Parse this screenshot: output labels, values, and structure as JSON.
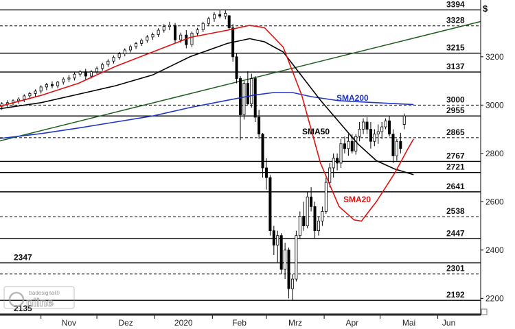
{
  "chart_data": {
    "type": "candlestick",
    "currency_unit": "$",
    "y_ticks": [
      2200,
      2400,
      2600,
      2800,
      3000,
      3200
    ],
    "y_range": [
      2130,
      3435
    ],
    "x_labels": [
      {
        "label": "Nov",
        "day": 0
      },
      {
        "label": "Dez",
        "day": 30
      },
      {
        "label": "2020",
        "day": 61
      },
      {
        "label": "Feb",
        "day": 92
      },
      {
        "label": "Mrz",
        "day": 121
      },
      {
        "label": "Apr",
        "day": 152
      },
      {
        "label": "Mai",
        "day": 182
      },
      {
        "label": "Jun",
        "day": 213
      }
    ],
    "x_range_days": [
      -22,
      236
    ],
    "levels": [
      {
        "value": 3394,
        "label": "3394",
        "style": "solid",
        "side": "right"
      },
      {
        "value": 3328,
        "label": "3328",
        "style": "dashed",
        "side": "right"
      },
      {
        "value": 3215,
        "label": "3215",
        "style": "solid",
        "side": "right"
      },
      {
        "value": 3137,
        "label": "3137",
        "style": "solid",
        "side": "right"
      },
      {
        "value": 3000,
        "label": "3000",
        "style": "dashed",
        "side": "right"
      },
      {
        "value": 2955,
        "label": "2955",
        "style": "solid",
        "side": "right"
      },
      {
        "value": 2865,
        "label": "2865",
        "style": "dashed",
        "side": "right"
      },
      {
        "value": 2767,
        "label": "2767",
        "style": "solid",
        "side": "right"
      },
      {
        "value": 2721,
        "label": "2721",
        "style": "solid",
        "side": "right"
      },
      {
        "value": 2641,
        "label": "2641",
        "style": "solid",
        "side": "right"
      },
      {
        "value": 2538,
        "label": "2538",
        "style": "dashed",
        "side": "right"
      },
      {
        "value": 2447,
        "label": "2447",
        "style": "solid",
        "side": "right"
      },
      {
        "value": 2347,
        "label": "2347",
        "style": "solid",
        "side": "left"
      },
      {
        "value": 2301,
        "label": "2301",
        "style": "dashed",
        "side": "right"
      },
      {
        "value": 2192,
        "label": "2192",
        "style": "solid",
        "side": "right"
      },
      {
        "value": 2135,
        "label": "2135",
        "style": "solid",
        "side": "left"
      }
    ],
    "trendline": {
      "from": {
        "day": -22,
        "value": 2852
      },
      "to": {
        "day": 236,
        "value": 3346
      },
      "color": "#1e5e1e"
    },
    "sma200": {
      "name": "SMA200",
      "color": "#1f35c8",
      "points": [
        [
          -22,
          2862
        ],
        [
          0,
          2882
        ],
        [
          20,
          2905
        ],
        [
          40,
          2930
        ],
        [
          60,
          2955
        ],
        [
          80,
          2990
        ],
        [
          100,
          3020
        ],
        [
          115,
          3042
        ],
        [
          125,
          3052
        ],
        [
          135,
          3052
        ],
        [
          145,
          3035
        ],
        [
          160,
          3018
        ],
        [
          180,
          3010
        ],
        [
          200,
          3002
        ]
      ]
    },
    "sma50": {
      "name": "SMA50",
      "color": "#000000",
      "points": [
        [
          -22,
          2985
        ],
        [
          0,
          3010
        ],
        [
          20,
          3045
        ],
        [
          40,
          3080
        ],
        [
          60,
          3125
        ],
        [
          80,
          3200
        ],
        [
          100,
          3255
        ],
        [
          112,
          3275
        ],
        [
          120,
          3262
        ],
        [
          130,
          3220
        ],
        [
          140,
          3120
        ],
        [
          150,
          3020
        ],
        [
          160,
          2930
        ],
        [
          170,
          2840
        ],
        [
          180,
          2770
        ],
        [
          190,
          2735
        ],
        [
          200,
          2712
        ]
      ]
    },
    "sma20": {
      "name": "SMA20",
      "color": "#e01010",
      "points": [
        [
          -22,
          2995
        ],
        [
          0,
          3040
        ],
        [
          20,
          3090
        ],
        [
          40,
          3160
        ],
        [
          60,
          3220
        ],
        [
          80,
          3280
        ],
        [
          100,
          3310
        ],
        [
          112,
          3330
        ],
        [
          120,
          3320
        ],
        [
          130,
          3240
        ],
        [
          140,
          3040
        ],
        [
          150,
          2760
        ],
        [
          160,
          2580
        ],
        [
          168,
          2525
        ],
        [
          172,
          2520
        ],
        [
          180,
          2600
        ],
        [
          190,
          2720
        ],
        [
          197,
          2820
        ],
        [
          200,
          2860
        ]
      ]
    },
    "candles": [
      [
        -21,
        2995,
        3012,
        2980,
        3005
      ],
      [
        -18,
        3005,
        3020,
        2992,
        3010
      ],
      [
        -15,
        3010,
        3024,
        2998,
        3018
      ],
      [
        -12,
        3018,
        3032,
        3005,
        3025
      ],
      [
        -9,
        3025,
        3045,
        3012,
        3038
      ],
      [
        -6,
        3038,
        3055,
        3025,
        3048
      ],
      [
        -3,
        3048,
        3065,
        3035,
        3058
      ],
      [
        0,
        3058,
        3082,
        3048,
        3075
      ],
      [
        3,
        3075,
        3092,
        3062,
        3085
      ],
      [
        6,
        3085,
        3098,
        3070,
        3080
      ],
      [
        9,
        3080,
        3100,
        3070,
        3095
      ],
      [
        12,
        3095,
        3115,
        3085,
        3108
      ],
      [
        15,
        3108,
        3125,
        3095,
        3112
      ],
      [
        18,
        3112,
        3135,
        3102,
        3128
      ],
      [
        21,
        3128,
        3145,
        3118,
        3138
      ],
      [
        24,
        3138,
        3150,
        3105,
        3120
      ],
      [
        27,
        3120,
        3145,
        3110,
        3138
      ],
      [
        30,
        3138,
        3160,
        3128,
        3152
      ],
      [
        33,
        3152,
        3175,
        3142,
        3168
      ],
      [
        36,
        3168,
        3190,
        3158,
        3182
      ],
      [
        39,
        3182,
        3205,
        3172,
        3198
      ],
      [
        42,
        3198,
        3220,
        3188,
        3212
      ],
      [
        45,
        3212,
        3235,
        3202,
        3228
      ],
      [
        48,
        3228,
        3250,
        3218,
        3242
      ],
      [
        51,
        3242,
        3262,
        3232,
        3255
      ],
      [
        54,
        3255,
        3275,
        3245,
        3268
      ],
      [
        57,
        3268,
        3290,
        3258,
        3282
      ],
      [
        60,
        3282,
        3300,
        3270,
        3292
      ],
      [
        63,
        3292,
        3318,
        3282,
        3310
      ],
      [
        66,
        3310,
        3335,
        3300,
        3325
      ],
      [
        69,
        3325,
        3345,
        3310,
        3330
      ],
      [
        72,
        3330,
        3340,
        3255,
        3270
      ],
      [
        75,
        3270,
        3300,
        3258,
        3290
      ],
      [
        78,
        3290,
        3310,
        3235,
        3250
      ],
      [
        81,
        3250,
        3305,
        3240,
        3298
      ],
      [
        84,
        3298,
        3320,
        3285,
        3312
      ],
      [
        87,
        3312,
        3345,
        3302,
        3338
      ],
      [
        90,
        3338,
        3365,
        3330,
        3358
      ],
      [
        93,
        3358,
        3385,
        3345,
        3375
      ],
      [
        96,
        3375,
        3394,
        3360,
        3368
      ],
      [
        99,
        3368,
        3392,
        3355,
        3380
      ],
      [
        101,
        3370,
        3372,
        3310,
        3320
      ],
      [
        103,
        3320,
        3335,
        3180,
        3200
      ],
      [
        105,
        3200,
        3215,
        3090,
        3110
      ],
      [
        107,
        3110,
        3120,
        2855,
        2960
      ],
      [
        109,
        2960,
        3100,
        2940,
        3090
      ],
      [
        111,
        3090,
        3140,
        3000,
        3005
      ],
      [
        113,
        3005,
        3130,
        2990,
        3110
      ],
      [
        115,
        3110,
        3120,
        2930,
        2950
      ],
      [
        117,
        2950,
        2980,
        2860,
        2880
      ],
      [
        119,
        2880,
        2885,
        2700,
        2740
      ],
      [
        121,
        2740,
        2780,
        2650,
        2700
      ],
      [
        123,
        2700,
        2710,
        2460,
        2480
      ],
      [
        125,
        2480,
        2500,
        2380,
        2420
      ],
      [
        127,
        2420,
        2480,
        2350,
        2460
      ],
      [
        129,
        2460,
        2470,
        2300,
        2320
      ],
      [
        131,
        2320,
        2430,
        2280,
        2400
      ],
      [
        133,
        2400,
        2410,
        2200,
        2240
      ],
      [
        135,
        2240,
        2300,
        2192,
        2280
      ],
      [
        137,
        2280,
        2480,
        2270,
        2460
      ],
      [
        139,
        2460,
        2560,
        2450,
        2540
      ],
      [
        141,
        2540,
        2600,
        2480,
        2500
      ],
      [
        143,
        2500,
        2640,
        2490,
        2620
      ],
      [
        145,
        2620,
        2660,
        2560,
        2580
      ],
      [
        147,
        2580,
        2600,
        2450,
        2480
      ],
      [
        149,
        2480,
        2540,
        2460,
        2520
      ],
      [
        151,
        2520,
        2580,
        2500,
        2560
      ],
      [
        153,
        2560,
        2700,
        2550,
        2680
      ],
      [
        155,
        2680,
        2760,
        2660,
        2740
      ],
      [
        157,
        2740,
        2800,
        2700,
        2780
      ],
      [
        159,
        2780,
        2800,
        2730,
        2760
      ],
      [
        161,
        2760,
        2860,
        2740,
        2840
      ],
      [
        163,
        2840,
        2870,
        2800,
        2820
      ],
      [
        165,
        2820,
        2880,
        2790,
        2850
      ],
      [
        167,
        2850,
        2880,
        2800,
        2810
      ],
      [
        169,
        2810,
        2880,
        2795,
        2870
      ],
      [
        171,
        2870,
        2930,
        2850,
        2900
      ],
      [
        173,
        2900,
        2945,
        2880,
        2930
      ],
      [
        175,
        2930,
        2950,
        2880,
        2900
      ],
      [
        177,
        2900,
        2930,
        2820,
        2850
      ],
      [
        179,
        2850,
        2900,
        2830,
        2880
      ],
      [
        181,
        2880,
        2920,
        2840,
        2890
      ],
      [
        183,
        2890,
        2930,
        2860,
        2910
      ],
      [
        185,
        2910,
        2945,
        2900,
        2935
      ],
      [
        187,
        2935,
        2955,
        2870,
        2880
      ],
      [
        189,
        2880,
        2900,
        2760,
        2790
      ],
      [
        191,
        2790,
        2860,
        2770,
        2850
      ],
      [
        193,
        2850,
        2885,
        2800,
        2820
      ],
      [
        195,
        2920,
        2965,
        2900,
        2955
      ]
    ]
  },
  "logo": {
    "brand": "Tradesignal",
    "product": "Online",
    "text": "Tradesignal® Online"
  }
}
